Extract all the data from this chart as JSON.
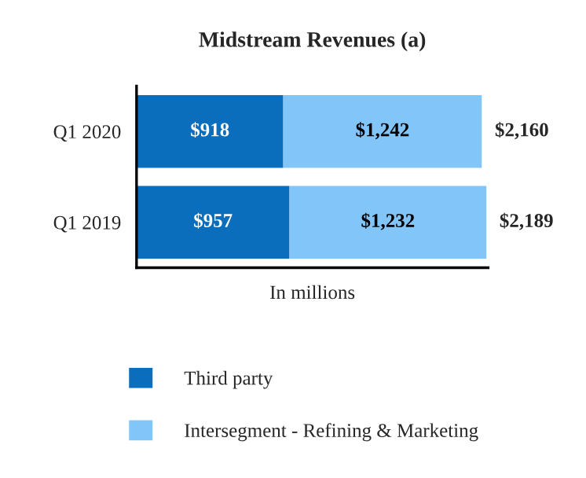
{
  "chart_data": {
    "type": "bar",
    "orientation": "horizontal",
    "stacked": true,
    "title": "Midstream Revenues (a)",
    "xlabel": "In millions",
    "categories": [
      "Q1 2020",
      "Q1 2019"
    ],
    "series": [
      {
        "name": "Third party",
        "color": "#0a6ebd",
        "values": [
          918,
          957
        ],
        "value_labels": [
          "$918",
          "$957"
        ]
      },
      {
        "name": "Intersegment - Refining & Marketing",
        "color": "#82c5f8",
        "values": [
          1242,
          1232
        ],
        "value_labels": [
          "$1,242",
          "$1,232"
        ]
      }
    ],
    "totals": [
      "$2,160",
      "$2,189"
    ],
    "xlim": [
      0,
      2200
    ],
    "tick_labels": "y",
    "legend": "bottom",
    "grid": false
  }
}
